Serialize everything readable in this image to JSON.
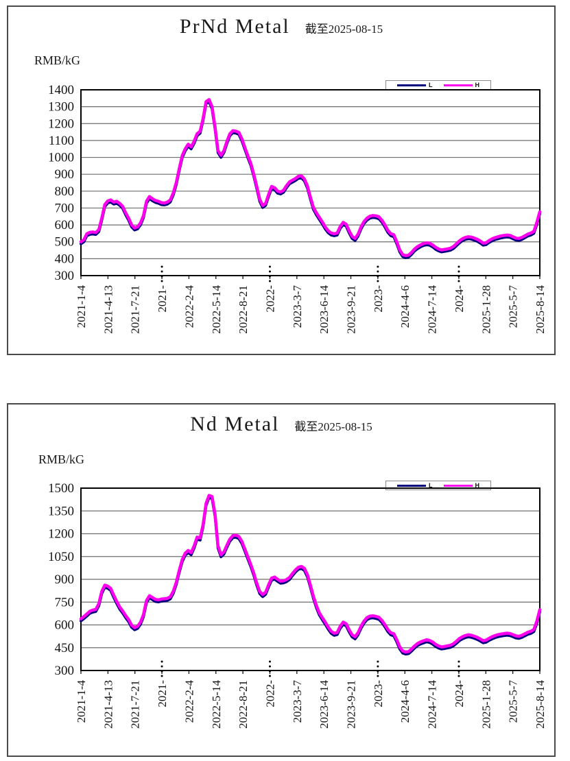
{
  "page": {
    "background": "#ffffff"
  },
  "colors": {
    "series_L": "#000080",
    "series_H": "#ff00ee",
    "gridline": "#6e6e6e",
    "frame": "#000000"
  },
  "chart_data": [
    {
      "type": "line",
      "title": "PrNd Metal",
      "subtitle": "截至2025-08-15",
      "unit_label": "RMB/kG",
      "ylim": [
        300,
        1400
      ],
      "ytick_step": 100,
      "grid": true,
      "legend_position": "top-right",
      "x_labels": [
        "2021-1-4",
        "2021-4-13",
        "2021-7-21",
        "2021-…",
        "2022-2-4",
        "2022-5-14",
        "2022-8-21",
        "2022-…",
        "2023-3-7",
        "2023-6-14",
        "2023-9-21",
        "2023-…",
        "2024-4-6",
        "2024-7-14",
        "2024-…",
        "2025-1-28",
        "2025-5-7",
        "2025-8-14"
      ],
      "dotted_tick_indices": [
        3,
        7,
        11,
        14
      ],
      "series": [
        {
          "name": "L",
          "color": "#000080",
          "values": [
            488,
            500,
            536,
            544,
            546,
            543,
            560,
            628,
            708,
            730,
            736,
            723,
            728,
            716,
            698,
            660,
            628,
            588,
            570,
            576,
            600,
            643,
            728,
            756,
            743,
            733,
            728,
            720,
            718,
            723,
            736,
            778,
            838,
            923,
            998,
            1038,
            1066,
            1050,
            1083,
            1128,
            1143,
            1218,
            1318,
            1330,
            1288,
            1168,
            1028,
            1000,
            1028,
            1083,
            1128,
            1146,
            1143,
            1136,
            1098,
            1048,
            998,
            953,
            888,
            816,
            740,
            703,
            716,
            770,
            816,
            808,
            788,
            783,
            793,
            820,
            843,
            853,
            863,
            876,
            878,
            860,
            818,
            753,
            693,
            660,
            633,
            606,
            576,
            553,
            540,
            536,
            540,
            578,
            603,
            593,
            553,
            520,
            508,
            533,
            576,
            608,
            628,
            640,
            644,
            642,
            636,
            616,
            588,
            556,
            536,
            530,
            488,
            440,
            412,
            406,
            410,
            426,
            446,
            460,
            470,
            478,
            482,
            480,
            470,
            456,
            446,
            440,
            443,
            446,
            450,
            460,
            476,
            493,
            506,
            514,
            518,
            516,
            510,
            503,
            493,
            480,
            483,
            496,
            506,
            513,
            518,
            523,
            526,
            528,
            526,
            518,
            510,
            508,
            514,
            524,
            534,
            540,
            550,
            603,
            666
          ]
        },
        {
          "name": "H",
          "color": "#ff00ee",
          "values": [
            500,
            512,
            548,
            556,
            558,
            555,
            572,
            640,
            720,
            742,
            748,
            735,
            740,
            728,
            710,
            672,
            640,
            600,
            582,
            588,
            612,
            655,
            740,
            768,
            755,
            745,
            740,
            732,
            730,
            735,
            748,
            790,
            850,
            935,
            1010,
            1050,
            1078,
            1062,
            1095,
            1140,
            1155,
            1230,
            1330,
            1342,
            1300,
            1180,
            1040,
            1012,
            1040,
            1095,
            1140,
            1158,
            1155,
            1148,
            1110,
            1060,
            1010,
            965,
            900,
            828,
            752,
            715,
            728,
            782,
            828,
            820,
            800,
            795,
            805,
            832,
            855,
            865,
            875,
            888,
            890,
            872,
            830,
            765,
            705,
            672,
            645,
            618,
            588,
            565,
            552,
            548,
            552,
            590,
            615,
            605,
            565,
            532,
            520,
            545,
            588,
            620,
            640,
            652,
            656,
            654,
            648,
            628,
            600,
            568,
            548,
            542,
            500,
            452,
            424,
            418,
            422,
            438,
            458,
            472,
            482,
            490,
            494,
            492,
            482,
            468,
            458,
            452,
            455,
            458,
            462,
            472,
            488,
            505,
            518,
            526,
            530,
            528,
            522,
            515,
            505,
            492,
            495,
            508,
            518,
            525,
            530,
            535,
            538,
            540,
            538,
            530,
            522,
            520,
            526,
            536,
            546,
            552,
            562,
            615,
            678
          ]
        }
      ]
    },
    {
      "type": "line",
      "title": "Nd Metal",
      "subtitle": "截至2025-08-15",
      "unit_label": "RMB/kG",
      "ylim": [
        300,
        1500
      ],
      "ytick_step": 150,
      "grid": true,
      "legend_position": "top-right",
      "x_labels": [
        "2021-1-4",
        "2021-4-13",
        "2021-7-21",
        "2021-…",
        "2022-2-4",
        "2022-5-14",
        "2022-8-21",
        "2022-…",
        "2023-3-7",
        "2023-6-14",
        "2023-9-21",
        "2023-…",
        "2024-4-6",
        "2024-7-14",
        "2024-…",
        "2025-1-28",
        "2025-5-7",
        "2025-8-14"
      ],
      "dotted_tick_indices": [
        3,
        7,
        11,
        14
      ],
      "series": [
        {
          "name": "L",
          "color": "#000080",
          "values": [
            626,
            641,
            658,
            676,
            684,
            688,
            726,
            806,
            848,
            841,
            826,
            781,
            741,
            704,
            678,
            648,
            621,
            584,
            568,
            576,
            604,
            654,
            746,
            778,
            766,
            754,
            751,
            756,
            758,
            761,
            771,
            808,
            866,
            946,
            1016,
            1058,
            1076,
            1061,
            1106,
            1164,
            1158,
            1246,
            1386,
            1438,
            1431,
            1316,
            1106,
            1048,
            1066,
            1111,
            1151,
            1174,
            1176,
            1168,
            1136,
            1086,
            1034,
            984,
            926,
            861,
            806,
            786,
            801,
            851,
            894,
            901,
            886,
            874,
            876,
            884,
            898,
            924,
            948,
            966,
            971,
            958,
            916,
            848,
            776,
            714,
            666,
            634,
            604,
            571,
            544,
            531,
            536,
            576,
            604,
            594,
            554,
            521,
            508,
            534,
            578,
            611,
            634,
            644,
            646,
            642,
            636,
            616,
            588,
            556,
            534,
            528,
            488,
            441,
            414,
            408,
            411,
            428,
            448,
            464,
            474,
            482,
            488,
            484,
            474,
            458,
            448,
            441,
            444,
            448,
            452,
            462,
            478,
            496,
            508,
            516,
            521,
            518,
            512,
            504,
            494,
            482,
            486,
            498,
            508,
            516,
            522,
            526,
            529,
            532,
            529,
            522,
            514,
            511,
            518,
            528,
            538,
            544,
            556,
            611,
            686
          ]
        },
        {
          "name": "H",
          "color": "#ff00ee",
          "values": [
            640,
            655,
            672,
            690,
            698,
            702,
            740,
            820,
            862,
            855,
            840,
            795,
            755,
            718,
            692,
            662,
            635,
            598,
            582,
            590,
            618,
            668,
            760,
            792,
            780,
            768,
            765,
            770,
            772,
            775,
            785,
            822,
            880,
            960,
            1030,
            1072,
            1090,
            1075,
            1120,
            1178,
            1172,
            1260,
            1400,
            1452,
            1445,
            1330,
            1120,
            1062,
            1080,
            1125,
            1165,
            1188,
            1190,
            1182,
            1150,
            1100,
            1048,
            998,
            940,
            875,
            820,
            800,
            815,
            865,
            908,
            915,
            900,
            888,
            890,
            898,
            912,
            938,
            962,
            980,
            985,
            972,
            930,
            862,
            790,
            728,
            680,
            648,
            618,
            585,
            558,
            545,
            550,
            590,
            618,
            608,
            568,
            535,
            522,
            548,
            592,
            625,
            648,
            658,
            660,
            656,
            650,
            630,
            602,
            570,
            548,
            542,
            502,
            455,
            428,
            422,
            425,
            442,
            462,
            478,
            488,
            496,
            502,
            498,
            488,
            472,
            462,
            455,
            458,
            462,
            466,
            476,
            492,
            510,
            522,
            530,
            535,
            532,
            526,
            518,
            508,
            496,
            500,
            512,
            522,
            530,
            536,
            540,
            543,
            546,
            543,
            536,
            528,
            525,
            532,
            542,
            552,
            558,
            570,
            625,
            700
          ]
        }
      ]
    }
  ]
}
